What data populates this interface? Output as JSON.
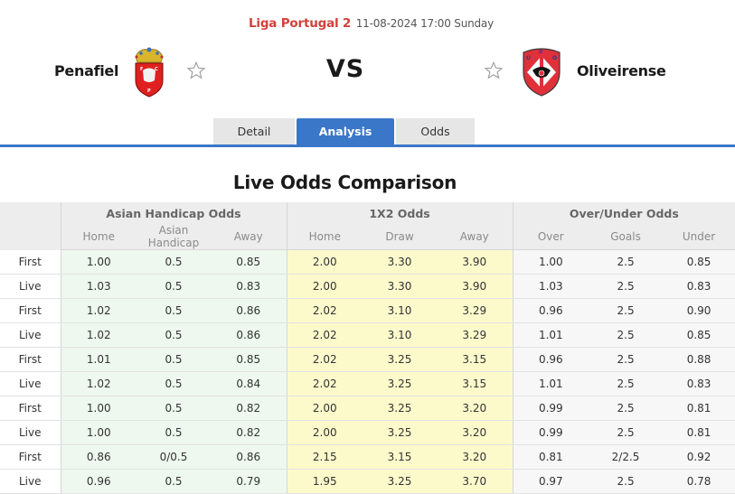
{
  "match": {
    "league": "Liga Portugal 2",
    "datetime": "11-08-2024 17:00 Sunday",
    "home_team": "Penafiel",
    "away_team": "Oliveirense",
    "vs_label": "VS",
    "home_crest_icon": "penafiel-crest",
    "away_crest_icon": "oliveirense-crest",
    "favorite_icon": "star-outline-icon"
  },
  "tabs": [
    {
      "label": "Detail",
      "active": false
    },
    {
      "label": "Analysis",
      "active": true
    },
    {
      "label": "Odds",
      "active": false
    }
  ],
  "colors": {
    "accent": "#3a77c9",
    "league": "#d2403c",
    "asian_handicap_bg": "#eef8ee",
    "x12_bg": "#fcfacb",
    "over_under_bg": "#f7f7f7"
  },
  "odds_table": {
    "title": "Live Odds Comparison",
    "groups": [
      "Asian Handicap Odds",
      "1X2 Odds",
      "Over/Under Odds"
    ],
    "columns": [
      "Home",
      "Asian Handicap",
      "Away",
      "Home",
      "Draw",
      "Away",
      "Over",
      "Goals",
      "Under"
    ],
    "rows": [
      {
        "type": "First",
        "ah_home": "1.00",
        "ah_line": "0.5",
        "ah_away": "0.85",
        "x_home": "2.00",
        "x_draw": "3.30",
        "x_away": "3.90",
        "ou_over": "1.00",
        "ou_goals": "2.5",
        "ou_under": "0.85"
      },
      {
        "type": "Live",
        "ah_home": "1.03",
        "ah_line": "0.5",
        "ah_away": "0.83",
        "x_home": "2.00",
        "x_draw": "3.30",
        "x_away": "3.90",
        "ou_over": "1.03",
        "ou_goals": "2.5",
        "ou_under": "0.83"
      },
      {
        "type": "First",
        "ah_home": "1.02",
        "ah_line": "0.5",
        "ah_away": "0.86",
        "x_home": "2.02",
        "x_draw": "3.10",
        "x_away": "3.29",
        "ou_over": "0.96",
        "ou_goals": "2.5",
        "ou_under": "0.90"
      },
      {
        "type": "Live",
        "ah_home": "1.02",
        "ah_line": "0.5",
        "ah_away": "0.86",
        "x_home": "2.02",
        "x_draw": "3.10",
        "x_away": "3.29",
        "ou_over": "1.01",
        "ou_goals": "2.5",
        "ou_under": "0.85"
      },
      {
        "type": "First",
        "ah_home": "1.01",
        "ah_line": "0.5",
        "ah_away": "0.85",
        "x_home": "2.02",
        "x_draw": "3.25",
        "x_away": "3.15",
        "ou_over": "0.96",
        "ou_goals": "2.5",
        "ou_under": "0.88"
      },
      {
        "type": "Live",
        "ah_home": "1.02",
        "ah_line": "0.5",
        "ah_away": "0.84",
        "x_home": "2.02",
        "x_draw": "3.25",
        "x_away": "3.15",
        "ou_over": "1.01",
        "ou_goals": "2.5",
        "ou_under": "0.83"
      },
      {
        "type": "First",
        "ah_home": "1.00",
        "ah_line": "0.5",
        "ah_away": "0.82",
        "x_home": "2.00",
        "x_draw": "3.25",
        "x_away": "3.20",
        "ou_over": "0.99",
        "ou_goals": "2.5",
        "ou_under": "0.81"
      },
      {
        "type": "Live",
        "ah_home": "1.00",
        "ah_line": "0.5",
        "ah_away": "0.82",
        "x_home": "2.00",
        "x_draw": "3.25",
        "x_away": "3.20",
        "ou_over": "0.99",
        "ou_goals": "2.5",
        "ou_under": "0.81"
      },
      {
        "type": "First",
        "ah_home": "0.86",
        "ah_line": "0/0.5",
        "ah_away": "0.86",
        "x_home": "2.15",
        "x_draw": "3.15",
        "x_away": "3.20",
        "ou_over": "0.81",
        "ou_goals": "2/2.5",
        "ou_under": "0.92"
      },
      {
        "type": "Live",
        "ah_home": "0.96",
        "ah_line": "0.5",
        "ah_away": "0.79",
        "x_home": "1.95",
        "x_draw": "3.25",
        "x_away": "3.70",
        "ou_over": "0.97",
        "ou_goals": "2.5",
        "ou_under": "0.78"
      }
    ]
  }
}
